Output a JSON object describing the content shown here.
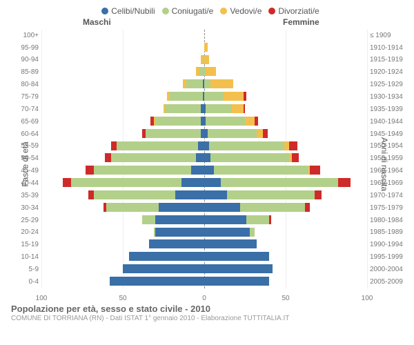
{
  "chart": {
    "type": "population-pyramid",
    "legend": [
      {
        "label": "Celibi/Nubili",
        "color": "#3a6fa8"
      },
      {
        "label": "Coniugati/e",
        "color": "#b3d08a"
      },
      {
        "label": "Vedovi/e",
        "color": "#f3c04d"
      },
      {
        "label": "Divorziati/e",
        "color": "#cf2a2a"
      }
    ],
    "header_male": "Maschi",
    "header_female": "Femmine",
    "y_left_title": "Fasce di età",
    "y_right_title": "Anni di nascita",
    "x_ticks": [
      100,
      50,
      0,
      50,
      100
    ],
    "x_max": 100,
    "grid_color": "#eeeeee",
    "axis_color": "#888888",
    "label_fontsize": 10,
    "title_fontsize": 13,
    "rows": [
      {
        "age": "100+",
        "birth": "≤ 1909",
        "m": [
          0,
          0,
          0,
          0
        ],
        "f": [
          0,
          0,
          0,
          0
        ]
      },
      {
        "age": "95-99",
        "birth": "1910-1914",
        "m": [
          0,
          0,
          0,
          0
        ],
        "f": [
          0,
          0,
          2,
          0
        ]
      },
      {
        "age": "90-94",
        "birth": "1915-1919",
        "m": [
          0,
          1,
          1,
          0
        ],
        "f": [
          0,
          0,
          3,
          0
        ]
      },
      {
        "age": "85-89",
        "birth": "1920-1924",
        "m": [
          0,
          3,
          2,
          0
        ],
        "f": [
          0,
          1,
          6,
          0
        ]
      },
      {
        "age": "80-84",
        "birth": "1925-1929",
        "m": [
          1,
          10,
          2,
          0
        ],
        "f": [
          0,
          4,
          14,
          0
        ]
      },
      {
        "age": "75-79",
        "birth": "1930-1934",
        "m": [
          1,
          20,
          2,
          0
        ],
        "f": [
          0,
          12,
          12,
          2
        ]
      },
      {
        "age": "70-74",
        "birth": "1935-1939",
        "m": [
          2,
          22,
          1,
          0
        ],
        "f": [
          1,
          16,
          7,
          1
        ]
      },
      {
        "age": "65-69",
        "birth": "1940-1944",
        "m": [
          2,
          28,
          1,
          2
        ],
        "f": [
          1,
          24,
          6,
          2
        ]
      },
      {
        "age": "60-64",
        "birth": "1945-1949",
        "m": [
          2,
          34,
          0,
          2
        ],
        "f": [
          2,
          30,
          4,
          3
        ]
      },
      {
        "age": "55-59",
        "birth": "1950-1954",
        "m": [
          4,
          50,
          0,
          3
        ],
        "f": [
          3,
          46,
          3,
          5
        ]
      },
      {
        "age": "50-54",
        "birth": "1955-1959",
        "m": [
          5,
          52,
          0,
          4
        ],
        "f": [
          4,
          48,
          2,
          4
        ]
      },
      {
        "age": "45-49",
        "birth": "1960-1964",
        "m": [
          8,
          60,
          0,
          5
        ],
        "f": [
          6,
          58,
          1,
          6
        ]
      },
      {
        "age": "40-44",
        "birth": "1965-1969",
        "m": [
          14,
          68,
          0,
          5
        ],
        "f": [
          10,
          72,
          0,
          8
        ]
      },
      {
        "age": "35-39",
        "birth": "1970-1974",
        "m": [
          18,
          50,
          0,
          3
        ],
        "f": [
          14,
          54,
          0,
          4
        ]
      },
      {
        "age": "30-34",
        "birth": "1975-1979",
        "m": [
          28,
          32,
          0,
          2
        ],
        "f": [
          22,
          40,
          0,
          3
        ]
      },
      {
        "age": "25-29",
        "birth": "1980-1984",
        "m": [
          30,
          8,
          0,
          0
        ],
        "f": [
          26,
          14,
          0,
          1
        ]
      },
      {
        "age": "20-24",
        "birth": "1985-1989",
        "m": [
          30,
          1,
          0,
          0
        ],
        "f": [
          28,
          3,
          0,
          0
        ]
      },
      {
        "age": "15-19",
        "birth": "1990-1994",
        "m": [
          34,
          0,
          0,
          0
        ],
        "f": [
          32,
          0,
          0,
          0
        ]
      },
      {
        "age": "10-14",
        "birth": "1995-1999",
        "m": [
          46,
          0,
          0,
          0
        ],
        "f": [
          40,
          0,
          0,
          0
        ]
      },
      {
        "age": "5-9",
        "birth": "2000-2004",
        "m": [
          50,
          0,
          0,
          0
        ],
        "f": [
          42,
          0,
          0,
          0
        ]
      },
      {
        "age": "0-4",
        "birth": "2005-2009",
        "m": [
          58,
          0,
          0,
          0
        ],
        "f": [
          40,
          0,
          0,
          0
        ]
      }
    ],
    "footer_title": "Popolazione per età, sesso e stato civile - 2010",
    "footer_sub": "COMUNE DI TORRIANA (RN) - Dati ISTAT 1° gennaio 2010 - Elaborazione TUTTITALIA.IT"
  }
}
